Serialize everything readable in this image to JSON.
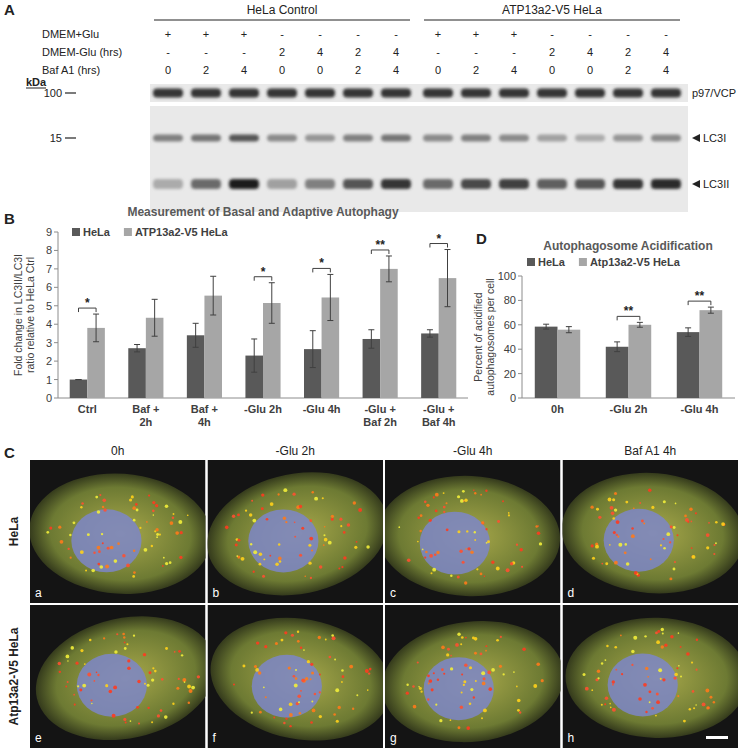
{
  "panel_labels": [
    "A",
    "B",
    "C",
    "D"
  ],
  "blot": {
    "groups": [
      "HeLa Control",
      "ATP13a2-V5 HeLa"
    ],
    "conditions": [
      {
        "label": "DMEM+Glu",
        "values": [
          "+",
          "+",
          "+",
          "-",
          "-",
          "-",
          "-"
        ]
      },
      {
        "label": "DMEM-Glu (hrs)",
        "values": [
          "-",
          "-",
          "-",
          "2",
          "4",
          "2",
          "4"
        ]
      },
      {
        "label": "Baf A1 (hrs)",
        "values": [
          "0",
          "2",
          "4",
          "0",
          "0",
          "2",
          "4"
        ]
      }
    ],
    "kda_label": "kDa",
    "markers": [
      100,
      15
    ],
    "bands": [
      {
        "label": "p97/VCP",
        "intensity": [
          0.85,
          0.85,
          0.85,
          0.85,
          0.85,
          0.85,
          0.85,
          0.85,
          0.85,
          0.85,
          0.85,
          0.85,
          0.85,
          0.85
        ]
      },
      {
        "label": "LC3I",
        "intensity": [
          0.5,
          0.55,
          0.7,
          0.45,
          0.4,
          0.5,
          0.55,
          0.45,
          0.5,
          0.45,
          0.35,
          0.3,
          0.4,
          0.45
        ]
      },
      {
        "label": "LC3II",
        "intensity": [
          0.3,
          0.6,
          0.95,
          0.35,
          0.5,
          0.7,
          0.85,
          0.6,
          0.75,
          0.8,
          0.65,
          0.7,
          0.85,
          0.9
        ]
      }
    ]
  },
  "chart_data": [
    {
      "type": "bar",
      "title": "Measurement of Basal and Adaptive Autophagy",
      "y_label": "Fold change in LC3II/LC3I ratio relative to HeLa Ctrl",
      "categories": [
        "Ctrl",
        "Baf + 2h",
        "Baf + 4h",
        "-Glu 2h",
        "-Glu 4h",
        "-Glu + Baf 2h",
        "-Glu + Baf 4h"
      ],
      "series": [
        {
          "name": "HeLa",
          "color": "#595959",
          "values": [
            1,
            2.7,
            3.4,
            2.3,
            2.65,
            3.2,
            3.5
          ],
          "errors": [
            0,
            0.2,
            0.65,
            0.9,
            1.0,
            0.5,
            0.2
          ]
        },
        {
          "name": "ATP13a2-V5 HeLa",
          "color": "#a6a6a6",
          "values": [
            3.8,
            4.35,
            5.55,
            5.15,
            5.45,
            7.0,
            6.5
          ],
          "errors": [
            0.75,
            1.0,
            1.05,
            1.1,
            1.25,
            0.7,
            1.55
          ]
        }
      ],
      "annotations": [
        "*",
        null,
        null,
        "*",
        "*",
        "**",
        "*"
      ],
      "ylim": [
        0,
        9
      ],
      "yticks": [
        0,
        1,
        2,
        3,
        4,
        5,
        6,
        7,
        8,
        9
      ],
      "grid": false,
      "legend": "top-left"
    },
    {
      "type": "bar",
      "title": "Autophagosome Acidification",
      "y_label": "Percent of acidified autophagosomes per cell",
      "categories": [
        "0h",
        "-Glu 2h",
        "-Glu 4h"
      ],
      "series": [
        {
          "name": "HeLa",
          "color": "#595959",
          "values": [
            58.5,
            42,
            54
          ],
          "errors": [
            2,
            4,
            3.5
          ]
        },
        {
          "name": "Atp13a2-V5 HeLa",
          "color": "#a6a6a6",
          "values": [
            56,
            60,
            72
          ],
          "errors": [
            2.5,
            2,
            2.5
          ]
        }
      ],
      "annotations": [
        null,
        "**",
        "**"
      ],
      "ylim": [
        0,
        100
      ],
      "yticks": [
        0,
        20,
        40,
        60,
        80,
        100
      ],
      "grid": false,
      "legend": "top-left"
    }
  ],
  "micrographs": {
    "columns": [
      "0h",
      "-Glu 2h",
      "-Glu 4h",
      "Baf A1 4h"
    ],
    "rows": [
      "HeLa",
      "Atp13a2-V5 HeLa"
    ],
    "panel_labels": [
      [
        "a",
        "b",
        "c",
        "d"
      ],
      [
        "e",
        "f",
        "g",
        "h"
      ]
    ]
  }
}
